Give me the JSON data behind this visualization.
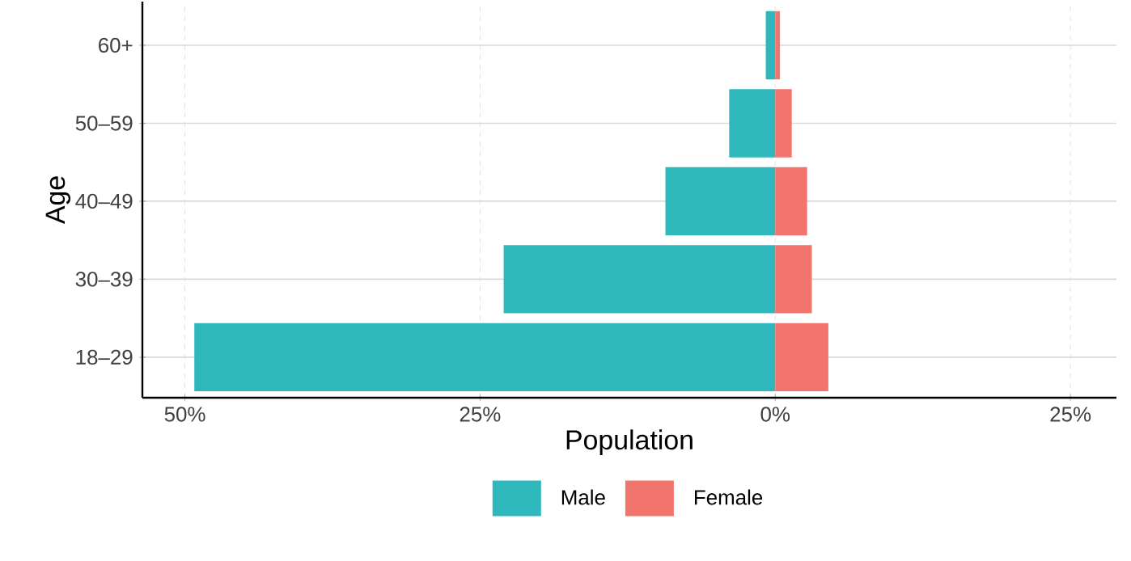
{
  "chart_data": {
    "type": "bar",
    "orientation": "horizontal",
    "stacked": true,
    "xlabel": "Population",
    "ylabel": "Age",
    "categories": [
      "60+",
      "50–59",
      "40–49",
      "30–39",
      "18–29"
    ],
    "series": [
      {
        "name": "Male",
        "color": "#2eb8bc",
        "values": [
          -0.8,
          -3.9,
          -9.3,
          -23.0,
          -49.2
        ]
      },
      {
        "name": "Female",
        "color": "#f2756d",
        "values": [
          0.4,
          1.4,
          2.7,
          3.1,
          4.5
        ]
      }
    ],
    "xlim": [
      -53.6,
      28.9
    ],
    "xticks": [
      {
        "value": -50,
        "label": "50%"
      },
      {
        "value": -25,
        "label": "25%"
      },
      {
        "value": 0,
        "label": "0%"
      },
      {
        "value": 25,
        "label": "25%"
      }
    ],
    "grid": true,
    "legend": "bottom"
  }
}
